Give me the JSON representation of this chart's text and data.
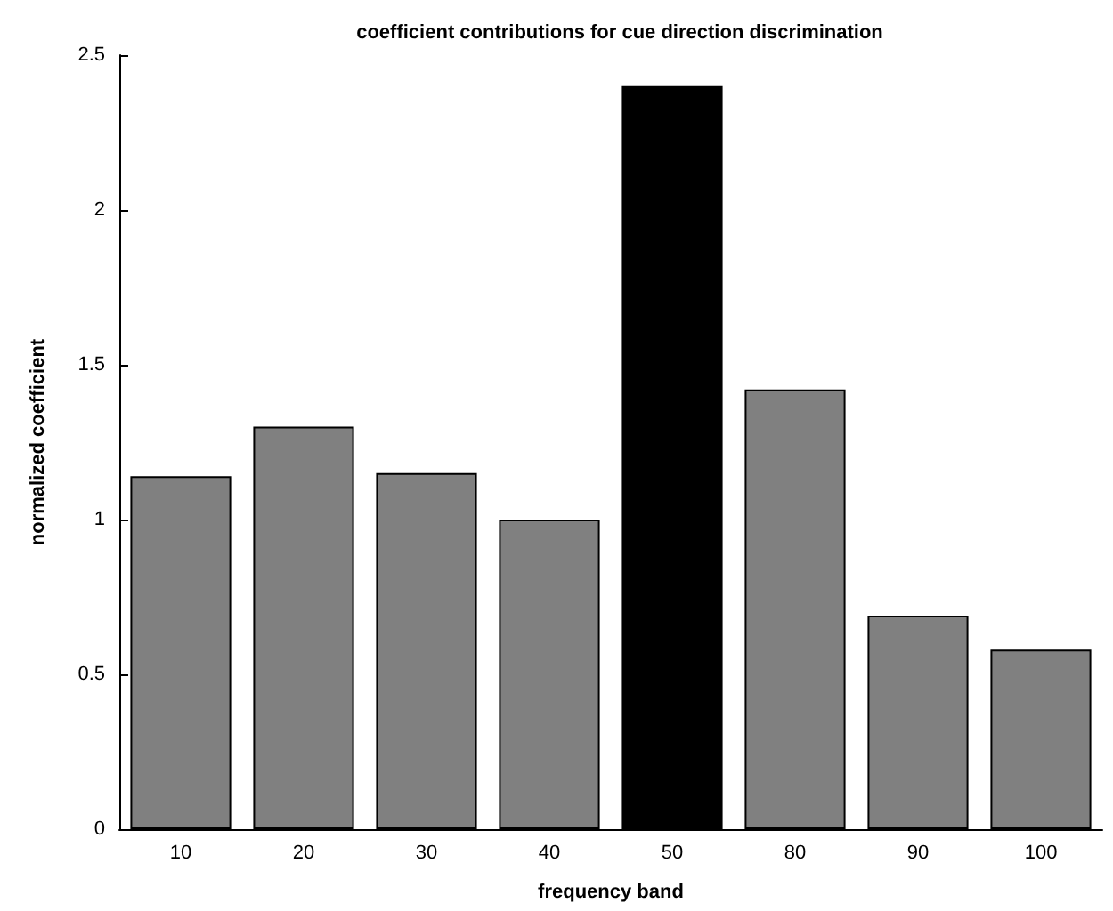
{
  "chart_data": {
    "type": "bar",
    "title": "coefficient contributions for cue direction discrimination",
    "xlabel": "frequency band",
    "ylabel": "normalized coefficient",
    "categories": [
      "10",
      "20",
      "30",
      "40",
      "50",
      "80",
      "90",
      "100"
    ],
    "values": [
      1.14,
      1.3,
      1.15,
      1.0,
      2.4,
      1.42,
      0.69,
      0.58
    ],
    "colors": [
      "#808080",
      "#808080",
      "#808080",
      "#808080",
      "#000000",
      "#808080",
      "#808080",
      "#808080"
    ],
    "ylim": [
      0,
      2.5
    ],
    "yticks": [
      0,
      0.5,
      1,
      1.5,
      2,
      2.5
    ],
    "grid": false
  }
}
